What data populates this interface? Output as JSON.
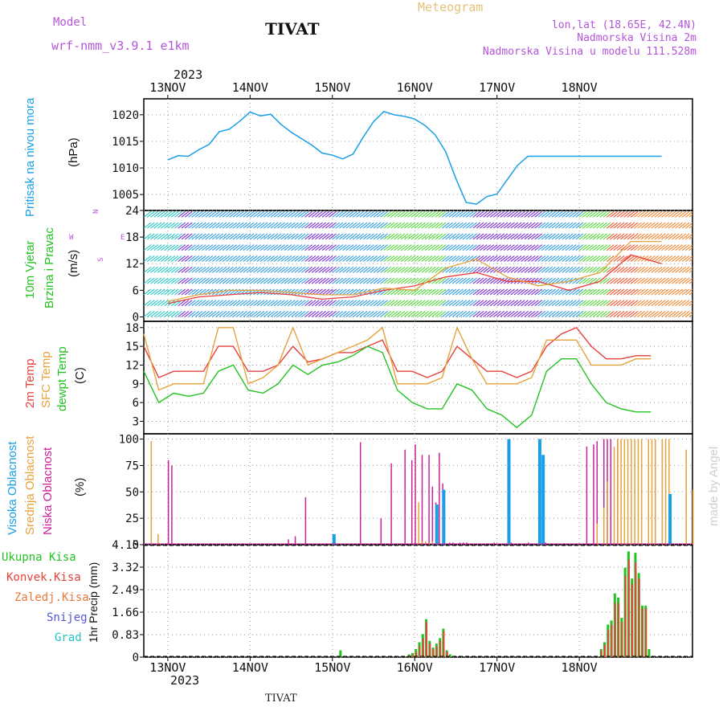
{
  "header": {
    "model_label": "Model",
    "model_name": "wrf-nmm_v3.9.1  e1km",
    "station": "TIVAT",
    "meteogram": "Meteogram",
    "lonlat": "lon,lat (18.65E, 42.4N)",
    "altitude": "Nadmorska Visina 2m",
    "model_altitude": "Nadmorska Visina u modelu 111.528m",
    "footer_station": "TIVAT",
    "watermark": "made by Angel"
  },
  "colors": {
    "pressure": "#1a9fe6",
    "temp2m": "#e8413c",
    "sfc": "#e6a23c",
    "dewpt": "#22c322",
    "low": "#cc2299",
    "mid": "#e6a23c",
    "high": "#1a9fe6",
    "total": "#22c322",
    "conv": "#e8413c",
    "grid": "#999999",
    "purple_text": "#b455d9"
  },
  "chart_data": [
    {
      "type": "line",
      "panel": "pressure",
      "title": "",
      "ylabel_left": "Pritisak na nivou mora",
      "ylabel_unit": "(hPa)",
      "xlabel_top_year": "2023",
      "xlabel_bottom_year": "2023",
      "x_ticks": [
        "13NOV",
        "14NOV",
        "15NOV",
        "16NOV",
        "17NOV",
        "18NOV"
      ],
      "ylim": [
        1002,
        1023
      ],
      "y_ticks": [
        1005,
        1010,
        1015,
        1020
      ],
      "grid": true,
      "series": [
        {
          "name": "Pritisak na nivou mora",
          "x": [
            0,
            3,
            6,
            9,
            12,
            15,
            18,
            21,
            24,
            27,
            30,
            33,
            36,
            39,
            42,
            45,
            48,
            51,
            54,
            57,
            60,
            63,
            66,
            69,
            72,
            75,
            78,
            81,
            84,
            87,
            90,
            93,
            96,
            99,
            102,
            105,
            108,
            111,
            114,
            117,
            120,
            123,
            126,
            129,
            132,
            135,
            138,
            141,
            144
          ],
          "values": [
            1011.5,
            1012.3,
            1012.2,
            1013.4,
            1014.4,
            1016.8,
            1017.3,
            1018.8,
            1020.5,
            1019.8,
            1020.1,
            1018.2,
            1016.7,
            1015.5,
            1014.3,
            1012.8,
            1012.4,
            1011.7,
            1012.6,
            1015.8,
            1018.7,
            1020.6,
            1020.0,
            1019.7,
            1019.2,
            1018.0,
            1016.2,
            1013.1,
            1008.0,
            1003.5,
            1003.2,
            1004.6,
            1005.1,
            1007.8,
            1010.5,
            1012.2,
            1012.2,
            1012.2,
            1012.2,
            1012.2,
            1012.2,
            1012.2,
            1012.2,
            1012.2,
            1012.2,
            1012.2,
            1012.2,
            1012.2,
            1012.2
          ]
        }
      ]
    },
    {
      "type": "line",
      "panel": "wind",
      "ylabel_left": [
        "10m Vjetar",
        "Brzina i Pravac"
      ],
      "ylabel_unit": "(m/s)",
      "compass": {
        "n": "N",
        "s": "S",
        "e": "E",
        "w": "W"
      },
      "ylim": [
        -1,
        24
      ],
      "y_ticks": [
        0,
        6,
        12,
        18,
        24
      ],
      "grid": true,
      "series": [
        {
          "name": "speed",
          "x": [
            0,
            6,
            12,
            18,
            24,
            30,
            36,
            42,
            48,
            54,
            60,
            66,
            72,
            78,
            84,
            90,
            96
          ],
          "values": [
            3,
            4.5,
            5,
            5.5,
            5,
            4,
            4.5,
            6,
            7,
            9,
            10,
            8,
            8,
            6,
            8,
            14,
            12
          ]
        },
        {
          "name": "gust",
          "x": [
            0,
            6,
            12,
            18,
            24,
            30,
            36,
            42,
            48,
            54,
            60,
            66,
            72,
            78,
            84,
            90,
            96
          ],
          "values": [
            3.5,
            5,
            6,
            6,
            5.5,
            5,
            5,
            6.5,
            6,
            11,
            13,
            9,
            7,
            8,
            10,
            17,
            17
          ]
        }
      ]
    },
    {
      "type": "line",
      "panel": "temperature",
      "ylabel_left": [
        "2m Temp",
        "SFC Temp",
        "dewpt Temp"
      ],
      "ylabel_unit": "(C)",
      "ylim": [
        1,
        19
      ],
      "y_ticks": [
        3,
        6,
        9,
        12,
        15,
        18
      ],
      "grid": true,
      "x": [
        0,
        3,
        6,
        9,
        12,
        15,
        18,
        21,
        24,
        27,
        30,
        33,
        36,
        39,
        42,
        45,
        48,
        51,
        54,
        57,
        60,
        63,
        66,
        69,
        72,
        75,
        78,
        81,
        84,
        87,
        90,
        93,
        96,
        99,
        102
      ],
      "series": [
        {
          "name": "2m Temp",
          "values": [
            15,
            10,
            11,
            11,
            11,
            15,
            15,
            11,
            11,
            12,
            15,
            12.5,
            13,
            14,
            14,
            15,
            16,
            11,
            11,
            10,
            11,
            15,
            13,
            11,
            11,
            10,
            11,
            15,
            17,
            18,
            15,
            13,
            13,
            13.5,
            13.5
          ]
        },
        {
          "name": "SFC Temp",
          "values": [
            17,
            8,
            9,
            9,
            9,
            18,
            18,
            9,
            10,
            12,
            18,
            12,
            13,
            14,
            15,
            16,
            18,
            9,
            9,
            9,
            10,
            18,
            13,
            9,
            9,
            9,
            10,
            16,
            16,
            16,
            12,
            12,
            12,
            13,
            13
          ]
        },
        {
          "name": "dewpt Temp",
          "values": [
            11,
            6,
            7.5,
            7,
            7.5,
            11,
            12,
            8,
            7.5,
            9,
            12,
            10.5,
            12,
            12.5,
            13.5,
            15,
            14,
            8,
            6,
            5,
            5,
            9,
            8,
            5,
            4,
            2,
            4,
            11,
            13,
            13,
            9,
            6,
            5,
            4.5,
            4.5
          ]
        }
      ]
    },
    {
      "type": "bar",
      "panel": "clouds",
      "ylabel_left": [
        "Visoka Oblacnost",
        "Srednja Oblacnost",
        "Niska Oblacnost"
      ],
      "ylabel_unit": "(%)",
      "ylim": [
        0,
        105
      ],
      "y_ticks": [
        0,
        25,
        50,
        75,
        100
      ],
      "grid": true,
      "series": [
        {
          "name": "Niska Oblacnost",
          "x": [
            2,
            6,
            7,
            41,
            43,
            46,
            62,
            68,
            71,
            75,
            77,
            78,
            80,
            82,
            83,
            84,
            85,
            86,
            88,
            89,
            91,
            92,
            93,
            101,
            105,
            106,
            111,
            116,
            128,
            130,
            131,
            133,
            134,
            135,
            137
          ],
          "values": [
            0,
            80,
            75,
            5,
            8,
            45,
            97,
            25,
            77,
            90,
            80,
            95,
            85,
            85,
            55,
            40,
            87,
            58,
            2,
            2,
            2,
            2,
            2,
            2,
            2,
            2,
            2,
            2,
            93,
            95,
            98,
            100,
            100,
            100,
            100
          ]
        },
        {
          "name": "Srednja Oblacnost",
          "x": [
            1,
            3,
            79,
            80,
            81,
            82,
            83,
            131,
            133,
            134,
            136,
            137,
            138,
            139,
            140,
            141,
            142,
            143,
            144,
            146,
            147,
            148,
            150,
            151,
            152,
            157,
            159
          ],
          "values": [
            98,
            10,
            40,
            3,
            3,
            2,
            3,
            20,
            35,
            60,
            93,
            100,
            100,
            100,
            100,
            100,
            100,
            100,
            100,
            100,
            100,
            100,
            100,
            100,
            100,
            90,
            52
          ]
        },
        {
          "name": "Visoka Oblacnost",
          "x": [
            54,
            84,
            86,
            105,
            114,
            115,
            116,
            117,
            152
          ],
          "values": [
            10,
            38,
            52,
            100,
            100,
            85,
            0,
            0,
            48
          ]
        }
      ]
    },
    {
      "type": "bar",
      "panel": "precip",
      "ylabel_left": [
        "Ukupna Kisa",
        "Konvek.Kisa",
        "Zaledj.Kisa",
        "Snijeg",
        "Grad"
      ],
      "ylabel_unit": "1hr Precip (mm)",
      "ylim": [
        0,
        4.15
      ],
      "y_ticks": [
        0,
        0.83,
        1.66,
        2.49,
        3.32,
        4.15
      ],
      "grid": true,
      "series": [
        {
          "name": "Ukupna Kisa",
          "x": [
            50,
            70,
            71,
            72,
            73,
            74,
            75,
            76,
            77,
            78,
            79,
            80,
            81,
            82,
            126,
            127,
            128,
            129,
            130,
            131,
            132,
            133,
            134,
            135,
            136,
            137,
            138,
            139,
            140
          ],
          "values": [
            0.25,
            0.1,
            0.15,
            0.3,
            0.55,
            0.85,
            1.4,
            0.6,
            0.35,
            0.5,
            0.7,
            1.05,
            0.25,
            0.1,
            0.3,
            0.55,
            1.2,
            1.35,
            2.35,
            2.2,
            1.45,
            3.3,
            3.9,
            2.9,
            3.85,
            3.1,
            1.9,
            1.9,
            0.3
          ]
        },
        {
          "name": "Konvek.Kisa",
          "x": [
            70,
            71,
            72,
            73,
            74,
            75,
            76,
            77,
            78,
            79,
            80,
            81,
            126,
            127,
            128,
            129,
            130,
            131,
            132,
            133,
            134,
            135,
            136,
            137,
            138,
            139
          ],
          "values": [
            0.05,
            0.1,
            0.2,
            0.4,
            0.7,
            1.3,
            0.5,
            0.3,
            0.4,
            0.6,
            0.95,
            0.2,
            0.25,
            0.45,
            1.0,
            1.2,
            2.0,
            2.0,
            1.3,
            3.0,
            3.6,
            2.7,
            3.5,
            2.9,
            1.8,
            1.8
          ]
        }
      ]
    }
  ]
}
